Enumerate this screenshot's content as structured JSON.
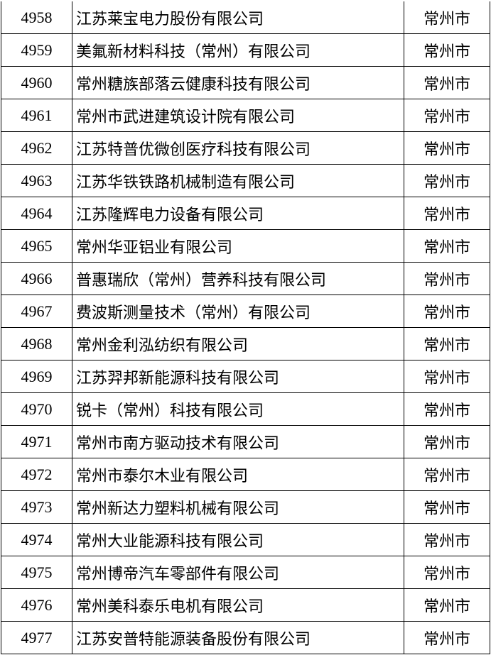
{
  "table": {
    "rows": [
      [
        "4958",
        "江苏莱宝电力股份有限公司",
        "常州市"
      ],
      [
        "4959",
        "美氟新材料科技（常州）有限公司",
        "常州市"
      ],
      [
        "4960",
        "常州糖族部落云健康科技有限公司",
        "常州市"
      ],
      [
        "4961",
        "常州市武进建筑设计院有限公司",
        "常州市"
      ],
      [
        "4962",
        "江苏特普优微创医疗科技有限公司",
        "常州市"
      ],
      [
        "4963",
        "江苏华铁铁路机械制造有限公司",
        "常州市"
      ],
      [
        "4964",
        "江苏隆辉电力设备有限公司",
        "常州市"
      ],
      [
        "4965",
        "常州华亚铝业有限公司",
        "常州市"
      ],
      [
        "4966",
        "普惠瑞欣（常州）营养科技有限公司",
        "常州市"
      ],
      [
        "4967",
        "费波斯测量技术（常州）有限公司",
        "常州市"
      ],
      [
        "4968",
        "常州金利泓纺织有限公司",
        "常州市"
      ],
      [
        "4969",
        "江苏羿邦新能源科技有限公司",
        "常州市"
      ],
      [
        "4970",
        "锐卡（常州）科技有限公司",
        "常州市"
      ],
      [
        "4971",
        "常州市南方驱动技术有限公司",
        "常州市"
      ],
      [
        "4972",
        "常州市泰尔木业有限公司",
        "常州市"
      ],
      [
        "4973",
        "常州新达力塑料机械有限公司",
        "常州市"
      ],
      [
        "4974",
        "常州大业能源科技有限公司",
        "常州市"
      ],
      [
        "4975",
        "常州博帝汽车零部件有限公司",
        "常州市"
      ],
      [
        "4976",
        "常州美科泰乐电机有限公司",
        "常州市"
      ],
      [
        "4977",
        "江苏安普特能源装备股份有限公司",
        "常州市"
      ]
    ]
  }
}
